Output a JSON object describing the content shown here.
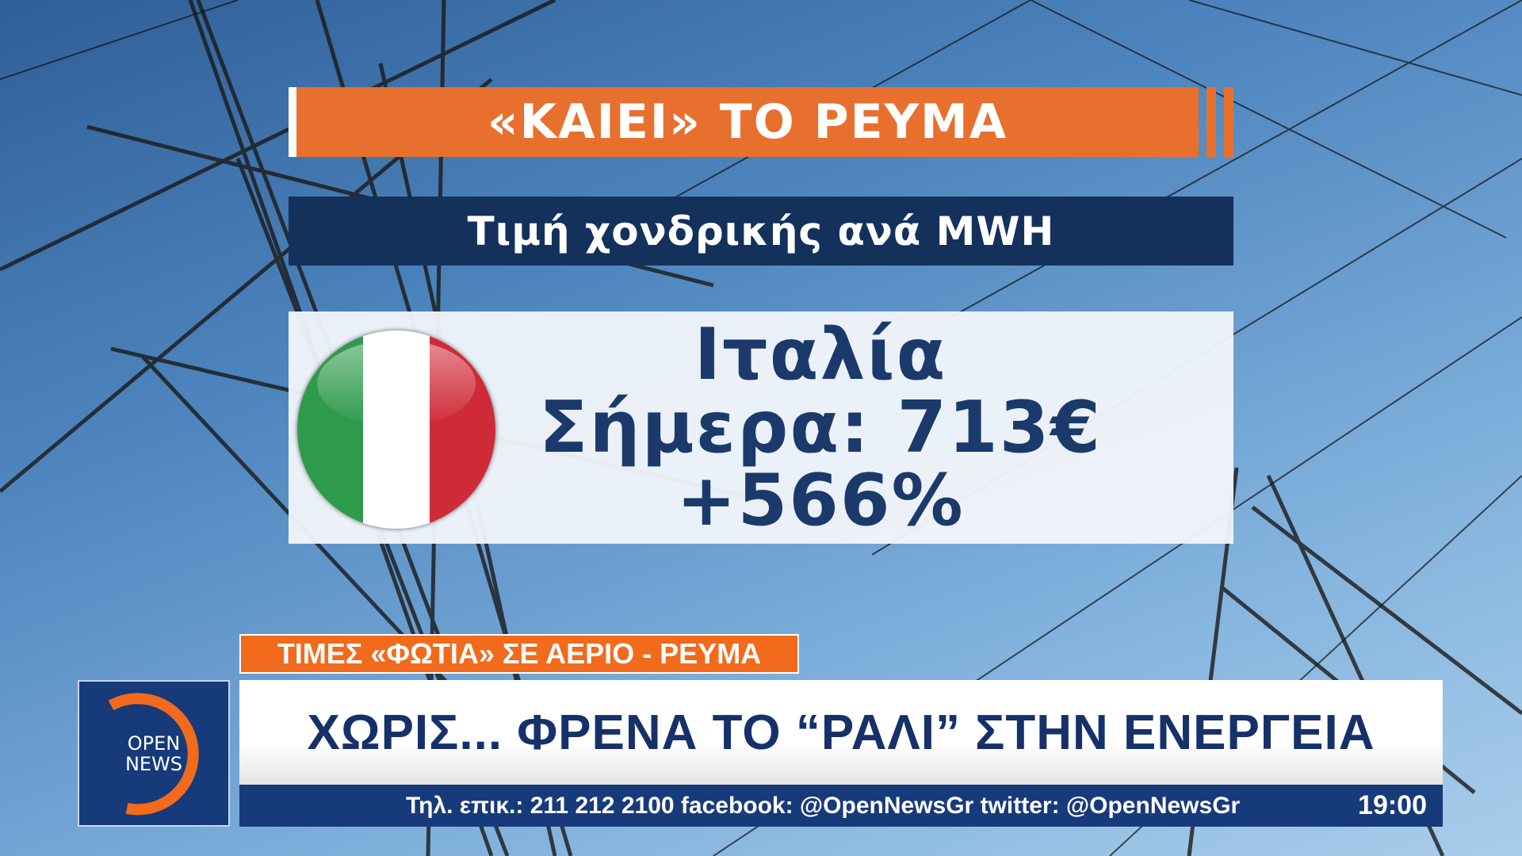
{
  "graphic": {
    "title": "«ΚΑΙΕΙ» ΤΟ ΡΕΥΜΑ",
    "subtitle": "Τιμή χονδρικής ανά MWH",
    "country": "Ιταλία",
    "price_line": "Σήμερα: 713€",
    "change": "+566%",
    "flag": {
      "icon": "italy-flag-icon",
      "colors": [
        "#2e9a4c",
        "#ffffff",
        "#cf2b37"
      ]
    }
  },
  "lower_third": {
    "tag": "ΤΙΜΕΣ «ΦΩΤΙΑ» ΣΕ ΑΕΡΙΟ - ΡΕΥΜΑ",
    "headline": "ΧΩΡΙΣ... ΦΡΕΝΑ  ΤΟ “ΡΑΛΙ” ΣΤΗΝ ΕΝΕΡΓΕΙΑ",
    "ticker": "Τηλ. επικ.: 211 212 2100 facebook: @OpenNewsGr twitter: @OpenNewsGr",
    "time": "19:00"
  },
  "logo": {
    "line1": "OPEN",
    "line2": "NEWS"
  },
  "colors": {
    "accent_orange": "#e8702e",
    "navy": "#14315c",
    "text_blue": "#1b3a6b"
  }
}
